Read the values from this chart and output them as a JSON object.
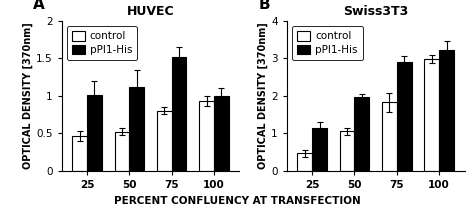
{
  "panel_A": {
    "title": "HUVEC",
    "label": "A",
    "ylim": [
      0,
      2
    ],
    "yticks": [
      0,
      0.5,
      1.0,
      1.5,
      2.0
    ],
    "ytick_labels": [
      "0",
      "0.5",
      "1",
      "1.5",
      "2"
    ],
    "categories": [
      "25",
      "50",
      "75",
      "100"
    ],
    "control_values": [
      0.46,
      0.52,
      0.8,
      0.93
    ],
    "control_errors": [
      0.07,
      0.05,
      0.05,
      0.07
    ],
    "pPI1_values": [
      1.01,
      1.12,
      1.52,
      1.0
    ],
    "pPI1_errors": [
      0.18,
      0.22,
      0.13,
      0.1
    ]
  },
  "panel_B": {
    "title": "Swiss3T3",
    "label": "B",
    "ylim": [
      0,
      4
    ],
    "yticks": [
      0,
      1,
      2,
      3,
      4
    ],
    "ytick_labels": [
      "0",
      "1",
      "2",
      "3",
      "4"
    ],
    "categories": [
      "25",
      "50",
      "75",
      "100"
    ],
    "control_values": [
      0.46,
      1.05,
      1.82,
      2.98
    ],
    "control_errors": [
      0.1,
      0.1,
      0.25,
      0.1
    ],
    "pPI1_values": [
      1.13,
      1.97,
      2.9,
      3.22
    ],
    "pPI1_errors": [
      0.18,
      0.08,
      0.15,
      0.25
    ]
  },
  "xlabel": "PERCENT CONFLUENCY AT TRANSFECTION",
  "ylabel": "OPTICAL DENSITY [370nm]",
  "legend_labels": [
    "control",
    "pPI1-His"
  ],
  "bar_width": 0.35,
  "control_color": "white",
  "pPI1_color": "black",
  "edgecolor": "black",
  "title_fontsize": 9,
  "tick_fontsize": 7.5,
  "legend_fontsize": 7.5,
  "xlabel_fontsize": 7.5,
  "ylabel_fontsize": 7,
  "panel_label_fontsize": 11
}
